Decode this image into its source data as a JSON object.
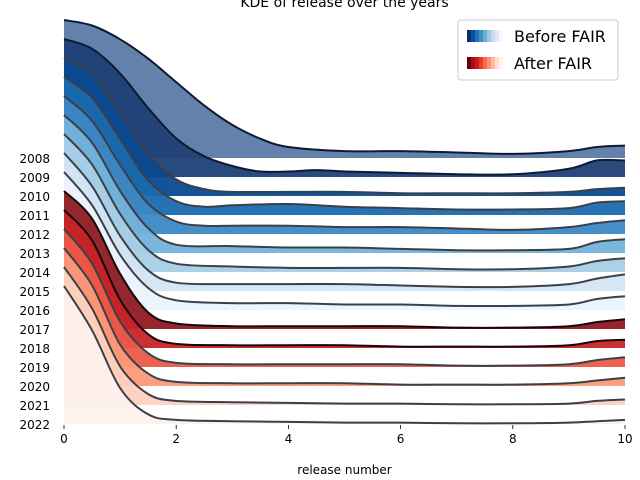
{
  "chart_data": {
    "type": "area",
    "title": "KDE of release over the years",
    "xlabel": "release number",
    "ylabel": "",
    "xlim": [
      0,
      10
    ],
    "x_ticks": [
      0,
      2,
      4,
      6,
      8,
      10
    ],
    "legend": {
      "placement": "top-right",
      "entries": [
        {
          "label": "Before FAIR",
          "colormap": "Blues"
        },
        {
          "label": "After FAIR",
          "colormap": "Reds"
        }
      ]
    },
    "colors": {
      "blues": [
        "#f7fbff",
        "#deebf7",
        "#c6dbef",
        "#9ecae1",
        "#6baed6",
        "#4292c6",
        "#2171b5",
        "#08519c",
        "#08306b"
      ],
      "reds": [
        "#fff5f0",
        "#fee0d2",
        "#fcbba1",
        "#fc9272",
        "#fb6a4a",
        "#ef3b2c",
        "#cb181d",
        "#a50f15",
        "#67000d"
      ]
    },
    "series": [
      {
        "name": "2008",
        "group": "before",
        "color": "#5b7aa6",
        "values": [
          [
            0,
            1.0
          ],
          [
            0.5,
            0.96
          ],
          [
            1,
            0.86
          ],
          [
            1.5,
            0.72
          ],
          [
            2,
            0.55
          ],
          [
            2.5,
            0.38
          ],
          [
            3,
            0.24
          ],
          [
            3.5,
            0.14
          ],
          [
            4,
            0.08
          ],
          [
            5,
            0.05
          ],
          [
            6,
            0.05
          ],
          [
            7,
            0.04
          ],
          [
            8,
            0.03
          ],
          [
            9,
            0.05
          ],
          [
            9.5,
            0.08
          ],
          [
            10,
            0.09
          ]
        ]
      },
      {
        "name": "2009",
        "group": "before",
        "color": "#1f3f75",
        "values": [
          [
            0,
            1.0
          ],
          [
            0.5,
            0.93
          ],
          [
            1,
            0.75
          ],
          [
            1.5,
            0.5
          ],
          [
            2,
            0.28
          ],
          [
            2.5,
            0.15
          ],
          [
            3,
            0.08
          ],
          [
            3.5,
            0.04
          ],
          [
            4,
            0.04
          ],
          [
            4.5,
            0.05
          ],
          [
            5,
            0.04
          ],
          [
            6,
            0.03
          ],
          [
            7,
            0.02
          ],
          [
            8,
            0.02
          ],
          [
            9,
            0.06
          ],
          [
            9.5,
            0.12
          ],
          [
            10,
            0.12
          ]
        ]
      },
      {
        "name": "2010",
        "group": "before",
        "color": "#0a4a90",
        "values": [
          [
            0,
            1.0
          ],
          [
            0.5,
            0.88
          ],
          [
            1,
            0.6
          ],
          [
            1.5,
            0.3
          ],
          [
            2,
            0.12
          ],
          [
            2.5,
            0.05
          ],
          [
            3,
            0.03
          ],
          [
            4,
            0.03
          ],
          [
            5,
            0.03
          ],
          [
            6,
            0.02
          ],
          [
            7,
            0.02
          ],
          [
            8,
            0.02
          ],
          [
            9,
            0.03
          ],
          [
            9.5,
            0.05
          ],
          [
            10,
            0.06
          ]
        ]
      },
      {
        "name": "2011",
        "group": "before",
        "color": "#1b6aae",
        "values": [
          [
            0,
            1.0
          ],
          [
            0.5,
            0.85
          ],
          [
            1,
            0.55
          ],
          [
            1.5,
            0.25
          ],
          [
            2,
            0.1
          ],
          [
            2.5,
            0.06
          ],
          [
            3,
            0.07
          ],
          [
            4,
            0.08
          ],
          [
            5,
            0.06
          ],
          [
            6,
            0.05
          ],
          [
            7,
            0.04
          ],
          [
            8,
            0.04
          ],
          [
            9,
            0.05
          ],
          [
            9.5,
            0.09
          ],
          [
            10,
            0.1
          ]
        ]
      },
      {
        "name": "2012",
        "group": "before",
        "color": "#3d87c3",
        "values": [
          [
            0,
            1.0
          ],
          [
            0.5,
            0.82
          ],
          [
            1,
            0.5
          ],
          [
            1.5,
            0.22
          ],
          [
            2,
            0.09
          ],
          [
            2.5,
            0.06
          ],
          [
            3,
            0.06
          ],
          [
            4,
            0.06
          ],
          [
            5,
            0.05
          ],
          [
            6,
            0.05
          ],
          [
            7,
            0.04
          ],
          [
            8,
            0.03
          ],
          [
            9,
            0.05
          ],
          [
            9.5,
            0.08
          ],
          [
            10,
            0.1
          ]
        ]
      },
      {
        "name": "2013",
        "group": "before",
        "color": "#74b2da",
        "values": [
          [
            0,
            1.0
          ],
          [
            0.5,
            0.8
          ],
          [
            1,
            0.45
          ],
          [
            1.5,
            0.18
          ],
          [
            2,
            0.06
          ],
          [
            3,
            0.05
          ],
          [
            4,
            0.04
          ],
          [
            5,
            0.04
          ],
          [
            6,
            0.03
          ],
          [
            7,
            0.02
          ],
          [
            8,
            0.02
          ],
          [
            9,
            0.03
          ],
          [
            9.5,
            0.08
          ],
          [
            10,
            0.1
          ]
        ]
      },
      {
        "name": "2014",
        "group": "before",
        "color": "#a8cfe6",
        "values": [
          [
            0,
            1.0
          ],
          [
            0.5,
            0.78
          ],
          [
            1,
            0.42
          ],
          [
            1.5,
            0.16
          ],
          [
            2,
            0.06
          ],
          [
            3,
            0.04
          ],
          [
            4,
            0.03
          ],
          [
            5,
            0.03
          ],
          [
            6,
            0.03
          ],
          [
            7,
            0.02
          ],
          [
            8,
            0.02
          ],
          [
            9,
            0.04
          ],
          [
            9.5,
            0.08
          ],
          [
            10,
            0.1
          ]
        ]
      },
      {
        "name": "2015",
        "group": "before",
        "color": "#d3e5f4",
        "values": [
          [
            0,
            1.0
          ],
          [
            0.5,
            0.76
          ],
          [
            1,
            0.4
          ],
          [
            1.5,
            0.15
          ],
          [
            2,
            0.06
          ],
          [
            3,
            0.05
          ],
          [
            4,
            0.05
          ],
          [
            5,
            0.05
          ],
          [
            6,
            0.04
          ],
          [
            7,
            0.03
          ],
          [
            8,
            0.03
          ],
          [
            9,
            0.05
          ],
          [
            9.5,
            0.09
          ],
          [
            10,
            0.12
          ]
        ]
      },
      {
        "name": "2016",
        "group": "before",
        "color": "#ebf3fc",
        "values": [
          [
            0,
            1.0
          ],
          [
            0.5,
            0.76
          ],
          [
            1,
            0.4
          ],
          [
            1.5,
            0.16
          ],
          [
            2,
            0.07
          ],
          [
            3,
            0.05
          ],
          [
            4,
            0.05
          ],
          [
            5,
            0.04
          ],
          [
            6,
            0.04
          ],
          [
            7,
            0.03
          ],
          [
            8,
            0.03
          ],
          [
            9,
            0.04
          ],
          [
            9.5,
            0.08
          ],
          [
            10,
            0.1
          ]
        ]
      },
      {
        "name": "2017",
        "group": "after",
        "color": "#8f1a23",
        "values": [
          [
            0,
            1.0
          ],
          [
            0.5,
            0.8
          ],
          [
            1,
            0.4
          ],
          [
            1.5,
            0.12
          ],
          [
            2,
            0.04
          ],
          [
            3,
            0.02
          ],
          [
            4,
            0.02
          ],
          [
            5,
            0.02
          ],
          [
            6,
            0.02
          ],
          [
            7,
            0.01
          ],
          [
            8,
            0.01
          ],
          [
            9,
            0.02
          ],
          [
            9.5,
            0.05
          ],
          [
            10,
            0.07
          ]
        ]
      },
      {
        "name": "2018",
        "group": "after",
        "color": "#c62428",
        "values": [
          [
            0,
            1.0
          ],
          [
            0.5,
            0.78
          ],
          [
            1,
            0.35
          ],
          [
            1.5,
            0.1
          ],
          [
            2,
            0.03
          ],
          [
            3,
            0.02
          ],
          [
            4,
            0.02
          ],
          [
            5,
            0.02
          ],
          [
            6,
            0.01
          ],
          [
            7,
            0.01
          ],
          [
            8,
            0.01
          ],
          [
            9,
            0.02
          ],
          [
            9.5,
            0.05
          ],
          [
            10,
            0.06
          ]
        ]
      },
      {
        "name": "2019",
        "group": "after",
        "color": "#ed5a48",
        "values": [
          [
            0,
            1.0
          ],
          [
            0.5,
            0.75
          ],
          [
            1,
            0.33
          ],
          [
            1.5,
            0.1
          ],
          [
            2,
            0.03
          ],
          [
            3,
            0.02
          ],
          [
            4,
            0.02
          ],
          [
            5,
            0.02
          ],
          [
            6,
            0.02
          ],
          [
            7,
            0.01
          ],
          [
            8,
            0.01
          ],
          [
            9,
            0.02
          ],
          [
            9.5,
            0.05
          ],
          [
            10,
            0.07
          ]
        ]
      },
      {
        "name": "2020",
        "group": "after",
        "color": "#fb9a78",
        "values": [
          [
            0,
            1.0
          ],
          [
            0.5,
            0.73
          ],
          [
            1,
            0.3
          ],
          [
            1.5,
            0.09
          ],
          [
            2,
            0.03
          ],
          [
            3,
            0.02
          ],
          [
            4,
            0.02
          ],
          [
            5,
            0.02
          ],
          [
            6,
            0.01
          ],
          [
            7,
            0.01
          ],
          [
            8,
            0.01
          ],
          [
            9,
            0.02
          ],
          [
            9.5,
            0.04
          ],
          [
            10,
            0.06
          ]
        ]
      },
      {
        "name": "2021",
        "group": "after",
        "color": "#fdd2bf",
        "values": [
          [
            0,
            1.0
          ],
          [
            0.5,
            0.7
          ],
          [
            1,
            0.28
          ],
          [
            1.5,
            0.08
          ],
          [
            2,
            0.03
          ],
          [
            3,
            0.02
          ],
          [
            4,
            0.015
          ],
          [
            5,
            0.01
          ],
          [
            6,
            0.01
          ],
          [
            7,
            0.005
          ],
          [
            8,
            0.005
          ],
          [
            9,
            0.01
          ],
          [
            9.5,
            0.03
          ],
          [
            10,
            0.04
          ]
        ]
      },
      {
        "name": "2022",
        "group": "after",
        "color": "#fdf1ec",
        "values": [
          [
            0,
            1.0
          ],
          [
            0.5,
            0.68
          ],
          [
            1,
            0.26
          ],
          [
            1.5,
            0.07
          ],
          [
            2,
            0.03
          ],
          [
            3,
            0.02
          ],
          [
            4,
            0.015
          ],
          [
            5,
            0.01
          ],
          [
            6,
            0.01
          ],
          [
            7,
            0.005
          ],
          [
            8,
            0.005
          ],
          [
            9,
            0.01
          ],
          [
            9.5,
            0.02
          ],
          [
            10,
            0.03
          ]
        ]
      }
    ]
  }
}
